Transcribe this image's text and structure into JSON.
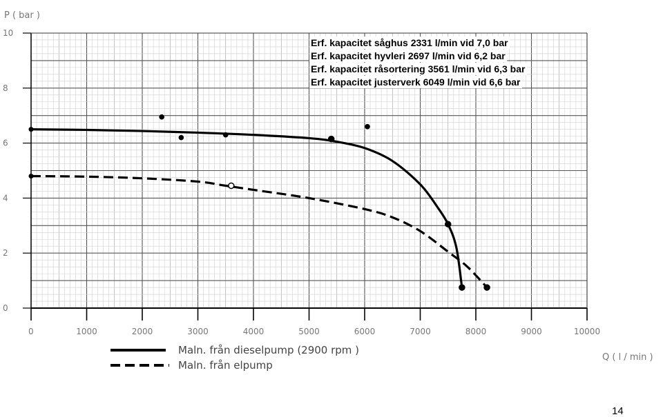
{
  "chart_data": {
    "type": "line",
    "title": "",
    "xlabel": "Q ( l / min )",
    "ylabel": "P ( bar )",
    "xlim": [
      0,
      10000
    ],
    "ylim": [
      0,
      10
    ],
    "x_ticks": [
      "0",
      "1000",
      "2000",
      "3000",
      "4000",
      "5000",
      "6000",
      "7000",
      "8000",
      "9000",
      "10000"
    ],
    "y_ticks": [
      "0",
      "2",
      "4",
      "6",
      "8",
      "10"
    ],
    "grid": true,
    "series": [
      {
        "name": "Maln. från dieselpump (2900 rpm )",
        "style": "solid",
        "color": "#000000",
        "points": [
          [
            0,
            6.5
          ],
          [
            1000,
            6.48
          ],
          [
            2000,
            6.44
          ],
          [
            3000,
            6.38
          ],
          [
            4000,
            6.3
          ],
          [
            5000,
            6.18
          ],
          [
            5500,
            6.05
          ],
          [
            6000,
            5.82
          ],
          [
            6500,
            5.35
          ],
          [
            7000,
            4.5
          ],
          [
            7300,
            3.7
          ],
          [
            7500,
            3.05
          ],
          [
            7650,
            2.2
          ],
          [
            7750,
            0.75
          ]
        ],
        "markers": [
          [
            5400,
            6.15
          ],
          [
            7500,
            3.05
          ],
          [
            7750,
            0.75
          ]
        ]
      },
      {
        "name": "Maln. från elpump",
        "style": "dashed",
        "color": "#000000",
        "points": [
          [
            0,
            4.8
          ],
          [
            1000,
            4.78
          ],
          [
            2000,
            4.72
          ],
          [
            3000,
            4.6
          ],
          [
            3500,
            4.45
          ],
          [
            4000,
            4.3
          ],
          [
            5000,
            4.0
          ],
          [
            6000,
            3.6
          ],
          [
            6500,
            3.3
          ],
          [
            7000,
            2.8
          ],
          [
            7500,
            2.05
          ],
          [
            7850,
            1.5
          ],
          [
            8200,
            0.75
          ]
        ],
        "markers": [
          [
            3600,
            4.45
          ],
          [
            8200,
            0.75
          ]
        ]
      }
    ],
    "capacity_points": [
      [
        2350,
        6.95
      ],
      [
        2700,
        6.2
      ],
      [
        3500,
        6.3
      ],
      [
        6050,
        6.6
      ]
    ],
    "annotations": [
      "Erf. kapacitet såghus 2331 l/min vid 7,0 bar",
      "Erf. kapacitet hyvleri 2697 l/min vid 6,2 bar",
      "Erf. kapacitet råsortering 3561 l/min vid 6,3 bar",
      "Erf. kapacitet justerverk 6049 l/min vid 6,6 bar"
    ],
    "legend_placement": "bottom-left"
  },
  "page": {
    "number": "14"
  }
}
